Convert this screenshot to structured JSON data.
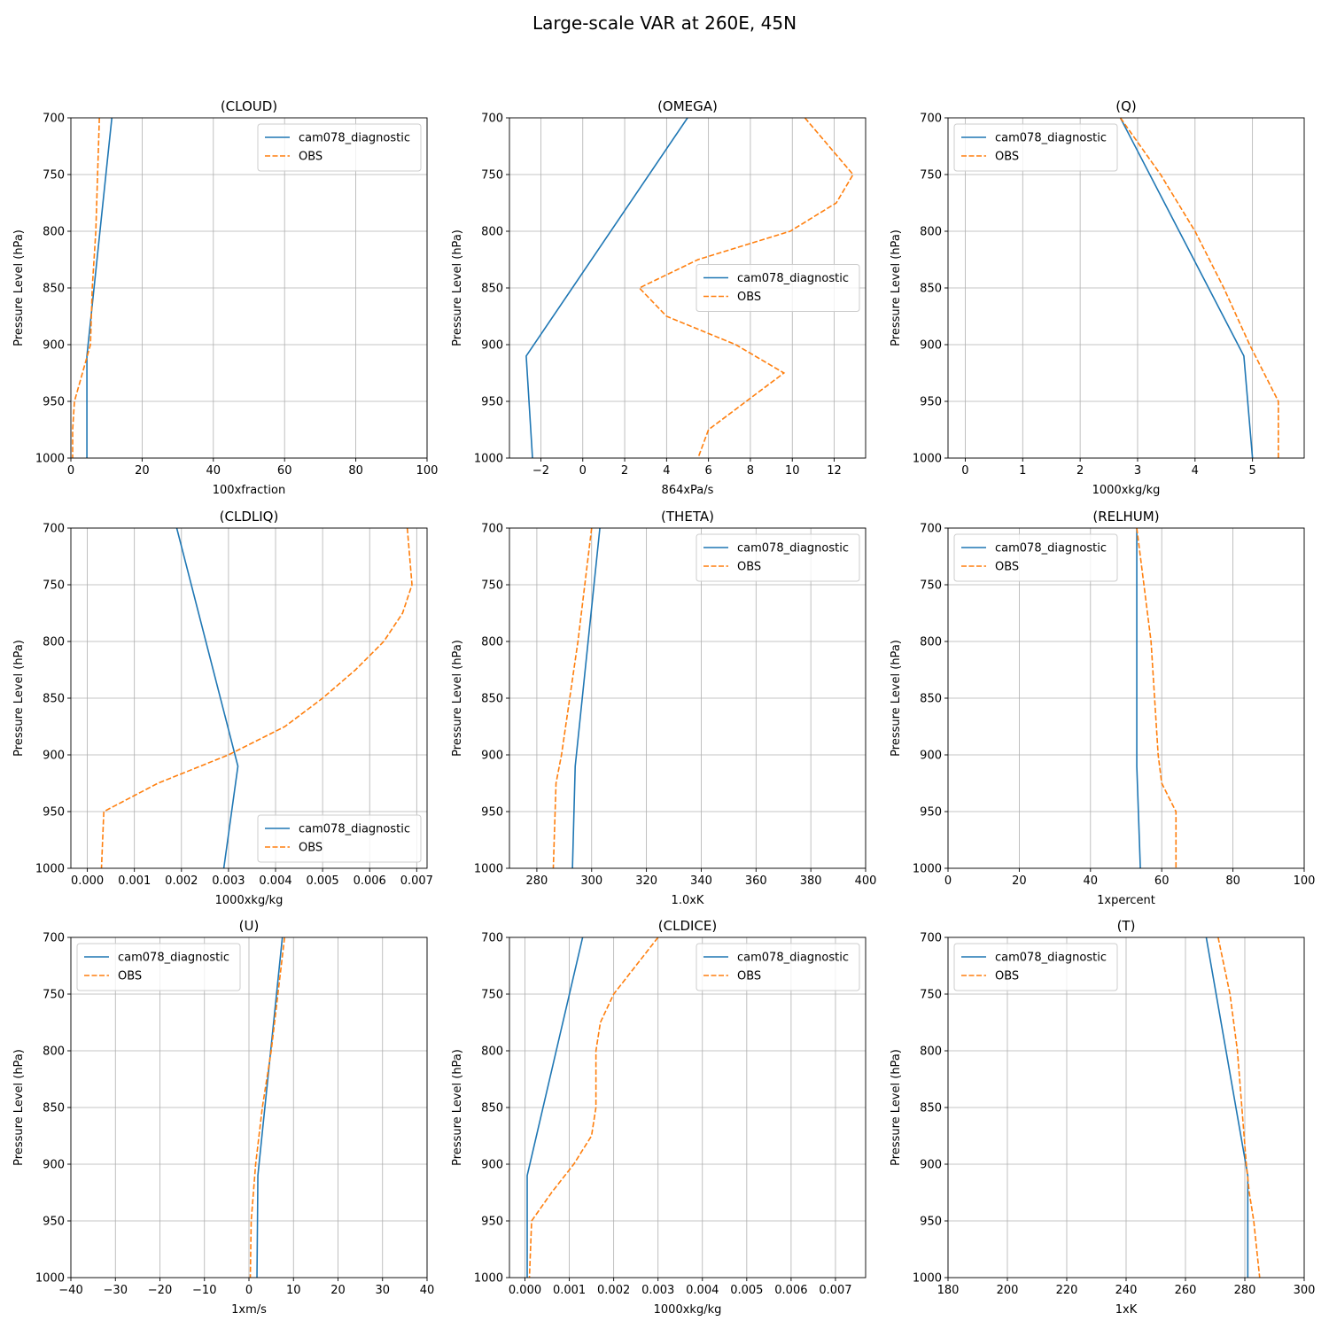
{
  "figure": {
    "title": "Large-scale VAR at 260E, 45N"
  },
  "colors": {
    "model": "#1f77b4",
    "obs": "#ff7f0e",
    "grid": "#b0b0b0"
  },
  "chart_data": [
    {
      "type": "line",
      "title": "(CLOUD)",
      "xlabel": "100xfraction",
      "ylabel": "Pressure Level (hPa)",
      "xlim": [
        0,
        100
      ],
      "xticks": [
        0,
        20,
        40,
        60,
        80,
        100
      ],
      "tick_labels": [
        "0",
        "20",
        "40",
        "60",
        "80",
        "100"
      ],
      "ylim": [
        1000,
        700
      ],
      "yticks": [
        700,
        750,
        800,
        850,
        900,
        950,
        1000
      ],
      "ytick_labels": [
        "700",
        "750",
        "800",
        "850",
        "900",
        "950",
        "1000"
      ],
      "legend": "upper right",
      "series": [
        {
          "name": "cam078_diagnostic",
          "style": "solid",
          "x": [
            11.5,
            4.5,
            4.5
          ],
          "y": [
            700,
            910,
            1000
          ]
        },
        {
          "name": "OBS",
          "style": "dashed",
          "x": [
            8,
            7,
            6,
            5.5,
            1,
            0.5,
            0.5
          ],
          "y": [
            700,
            800,
            850,
            900,
            950,
            975,
            1000
          ]
        }
      ]
    },
    {
      "type": "line",
      "title": "(OMEGA)",
      "xlabel": "864xPa/s",
      "ylabel": "Pressure Level (hPa)",
      "xlim": [
        -3.5,
        13.5
      ],
      "xticks": [
        -2,
        0,
        2,
        4,
        6,
        8,
        10,
        12
      ],
      "tick_labels": [
        "−2",
        "0",
        "2",
        "4",
        "6",
        "8",
        "10",
        "12"
      ],
      "ylim": [
        1000,
        700
      ],
      "yticks": [
        700,
        750,
        800,
        850,
        900,
        950,
        1000
      ],
      "ytick_labels": [
        "700",
        "750",
        "800",
        "850",
        "900",
        "950",
        "1000"
      ],
      "legend": "center right",
      "series": [
        {
          "name": "cam078_diagnostic",
          "style": "solid",
          "x": [
            5,
            -2.7,
            -2.4
          ],
          "y": [
            700,
            910,
            1000
          ]
        },
        {
          "name": "OBS",
          "style": "dashed",
          "x": [
            10.6,
            12.9,
            12.1,
            9.9,
            5.5,
            2.7,
            4,
            7.3,
            9.6,
            6,
            5.5
          ],
          "y": [
            700,
            750,
            775,
            800,
            825,
            850,
            875,
            900,
            925,
            975,
            1000
          ]
        }
      ]
    },
    {
      "type": "line",
      "title": "(Q)",
      "xlabel": "1000xkg/kg",
      "ylabel": "Pressure Level (hPa)",
      "xlim": [
        -0.3,
        5.9
      ],
      "xticks": [
        0,
        1,
        2,
        3,
        4,
        5
      ],
      "tick_labels": [
        "0",
        "1",
        "2",
        "3",
        "4",
        "5"
      ],
      "ylim": [
        1000,
        700
      ],
      "yticks": [
        700,
        750,
        800,
        850,
        900,
        950,
        1000
      ],
      "ytick_labels": [
        "700",
        "750",
        "800",
        "850",
        "900",
        "950",
        "1000"
      ],
      "legend": "upper left",
      "series": [
        {
          "name": "cam078_diagnostic",
          "style": "solid",
          "x": [
            2.7,
            4.85,
            5.0
          ],
          "y": [
            700,
            910,
            1000
          ]
        },
        {
          "name": "OBS",
          "style": "dashed",
          "x": [
            2.7,
            3.4,
            4.0,
            4.5,
            4.95,
            5.45,
            5.45
          ],
          "y": [
            700,
            750,
            800,
            850,
            900,
            950,
            1000
          ]
        }
      ]
    },
    {
      "type": "line",
      "title": "(CLDLIQ)",
      "xlabel": "1000xkg/kg",
      "ylabel": "Pressure Level (hPa)",
      "xlim": [
        -0.00035,
        0.00722
      ],
      "xticks": [
        0,
        0.001,
        0.002,
        0.003,
        0.004,
        0.005,
        0.006,
        0.007
      ],
      "tick_labels": [
        "0.000",
        "0.001",
        "0.002",
        "0.003",
        "0.004",
        "0.005",
        "0.006",
        "0.007"
      ],
      "ylim": [
        1000,
        700
      ],
      "yticks": [
        700,
        750,
        800,
        850,
        900,
        950,
        1000
      ],
      "ytick_labels": [
        "700",
        "750",
        "800",
        "850",
        "900",
        "950",
        "1000"
      ],
      "legend": "lower right",
      "series": [
        {
          "name": "cam078_diagnostic",
          "style": "solid",
          "x": [
            0.0019,
            0.0032,
            0.0029
          ],
          "y": [
            700,
            910,
            1000
          ]
        },
        {
          "name": "OBS",
          "style": "dashed",
          "x": [
            0.0068,
            0.0069,
            0.0067,
            0.0063,
            0.0057,
            0.005,
            0.0042,
            0.003,
            0.0015,
            0.00035,
            0.0003
          ],
          "y": [
            700,
            750,
            775,
            800,
            825,
            850,
            875,
            900,
            925,
            950,
            1000
          ]
        }
      ]
    },
    {
      "type": "line",
      "title": "(THETA)",
      "xlabel": "1.0xK",
      "ylabel": "Pressure Level (hPa)",
      "xlim": [
        270,
        400
      ],
      "xticks": [
        280,
        300,
        320,
        340,
        360,
        380,
        400
      ],
      "tick_labels": [
        "280",
        "300",
        "320",
        "340",
        "360",
        "380",
        "400"
      ],
      "ylim": [
        1000,
        700
      ],
      "yticks": [
        700,
        750,
        800,
        850,
        900,
        950,
        1000
      ],
      "ytick_labels": [
        "700",
        "750",
        "800",
        "850",
        "900",
        "950",
        "1000"
      ],
      "legend": "upper right",
      "series": [
        {
          "name": "cam078_diagnostic",
          "style": "solid",
          "x": [
            303,
            294,
            293
          ],
          "y": [
            700,
            910,
            1000
          ]
        },
        {
          "name": "OBS",
          "style": "dashed",
          "x": [
            300,
            297.5,
            295,
            292,
            289,
            287,
            286
          ],
          "y": [
            700,
            750,
            800,
            850,
            900,
            925,
            1000
          ]
        }
      ]
    },
    {
      "type": "line",
      "title": "(RELHUM)",
      "xlabel": "1xpercent",
      "ylabel": "Pressure Level (hPa)",
      "xlim": [
        0,
        100
      ],
      "xticks": [
        0,
        20,
        40,
        60,
        80,
        100
      ],
      "tick_labels": [
        "0",
        "20",
        "40",
        "60",
        "80",
        "100"
      ],
      "ylim": [
        1000,
        700
      ],
      "yticks": [
        700,
        750,
        800,
        850,
        900,
        950,
        1000
      ],
      "ytick_labels": [
        "700",
        "750",
        "800",
        "850",
        "900",
        "950",
        "1000"
      ],
      "legend": "upper left",
      "series": [
        {
          "name": "cam078_diagnostic",
          "style": "solid",
          "x": [
            53,
            53,
            54
          ],
          "y": [
            700,
            910,
            1000
          ]
        },
        {
          "name": "OBS",
          "style": "dashed",
          "x": [
            53,
            55,
            57,
            58,
            59,
            60,
            64,
            64
          ],
          "y": [
            700,
            750,
            800,
            850,
            900,
            925,
            950,
            1000
          ]
        }
      ]
    },
    {
      "type": "line",
      "title": "(U)",
      "xlabel": "1xm/s",
      "ylabel": "Pressure Level (hPa)",
      "xlim": [
        -40,
        40
      ],
      "xticks": [
        -40,
        -30,
        -20,
        -10,
        0,
        10,
        20,
        30,
        40
      ],
      "tick_labels": [
        "−40",
        "−30",
        "−20",
        "−10",
        "0",
        "10",
        "20",
        "30",
        "40"
      ],
      "ylim": [
        1000,
        700
      ],
      "yticks": [
        700,
        750,
        800,
        850,
        900,
        950,
        1000
      ],
      "ytick_labels": [
        "700",
        "750",
        "800",
        "850",
        "900",
        "950",
        "1000"
      ],
      "legend": "upper left",
      "series": [
        {
          "name": "cam078_diagnostic",
          "style": "solid",
          "x": [
            7.5,
            2,
            1.8
          ],
          "y": [
            700,
            910,
            1000
          ]
        },
        {
          "name": "OBS",
          "style": "dashed",
          "x": [
            8,
            5,
            3,
            1.5,
            0.5,
            0.3
          ],
          "y": [
            700,
            800,
            850,
            900,
            950,
            1000
          ]
        }
      ]
    },
    {
      "type": "line",
      "title": "(CLDICE)",
      "xlabel": "1000xkg/kg",
      "ylabel": "Pressure Level (hPa)",
      "xlim": [
        -0.00035,
        0.00768
      ],
      "xticks": [
        0,
        0.001,
        0.002,
        0.003,
        0.004,
        0.005,
        0.006,
        0.007
      ],
      "tick_labels": [
        "0.000",
        "0.001",
        "0.002",
        "0.003",
        "0.004",
        "0.005",
        "0.006",
        "0.007"
      ],
      "ylim": [
        1000,
        700
      ],
      "yticks": [
        700,
        750,
        800,
        850,
        900,
        950,
        1000
      ],
      "ytick_labels": [
        "700",
        "750",
        "800",
        "850",
        "900",
        "950",
        "1000"
      ],
      "legend": "upper right",
      "series": [
        {
          "name": "cam078_diagnostic",
          "style": "solid",
          "x": [
            0.0013,
            5e-05,
            5e-05
          ],
          "y": [
            700,
            910,
            1000
          ]
        },
        {
          "name": "OBS",
          "style": "dashed",
          "x": [
            0.003,
            0.002,
            0.0017,
            0.0016,
            0.0016,
            0.0015,
            0.0011,
            0.0006,
            0.00015,
            0.0001
          ],
          "y": [
            700,
            750,
            775,
            800,
            850,
            875,
            900,
            925,
            950,
            1000
          ]
        }
      ]
    },
    {
      "type": "line",
      "title": "(T)",
      "xlabel": "1xK",
      "ylabel": "Pressure Level (hPa)",
      "xlim": [
        180,
        300
      ],
      "xticks": [
        180,
        200,
        220,
        240,
        260,
        280,
        300
      ],
      "tick_labels": [
        "180",
        "200",
        "220",
        "240",
        "260",
        "280",
        "300"
      ],
      "ylim": [
        1000,
        700
      ],
      "yticks": [
        700,
        750,
        800,
        850,
        900,
        950,
        1000
      ],
      "ytick_labels": [
        "700",
        "750",
        "800",
        "850",
        "900",
        "950",
        "1000"
      ],
      "legend": "upper left",
      "series": [
        {
          "name": "cam078_diagnostic",
          "style": "solid",
          "x": [
            267,
            281,
            281
          ],
          "y": [
            700,
            910,
            1000
          ]
        },
        {
          "name": "OBS",
          "style": "dashed",
          "x": [
            271,
            275,
            277.5,
            279,
            280.5,
            281.5,
            283,
            285
          ],
          "y": [
            700,
            750,
            800,
            850,
            900,
            925,
            950,
            1000
          ]
        }
      ]
    }
  ]
}
